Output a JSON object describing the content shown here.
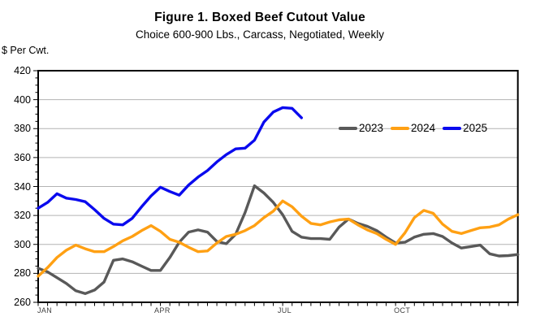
{
  "chart_data": {
    "type": "line",
    "title": "Figure 1. Boxed Beef Cutout Value",
    "subtitle": "Choice 600-900 Lbs., Carcass, Negotiated, Weekly",
    "y_axis_label": "$ Per Cwt.",
    "ylim": [
      260,
      420
    ],
    "y_ticks": [
      420,
      400,
      380,
      360,
      340,
      320,
      300,
      280,
      260
    ],
    "y_minor_tick_step": 5,
    "grid": "horizontal",
    "x_unit": "week",
    "x_weeks_per_year": 52,
    "x_tick_labels": [
      {
        "label": "JAN",
        "week": 0.7
      },
      {
        "label": "APR",
        "week": 13.2
      },
      {
        "label": "JUL",
        "week": 26.2
      },
      {
        "label": "OCT",
        "week": 38.7
      }
    ],
    "legend_position": "inside-top-right",
    "colors": {
      "grid": "#b3b3b3",
      "axis": "#000000",
      "background": "#ffffff"
    },
    "series": [
      {
        "name": "2023",
        "color": "#595959",
        "values": [
          283.5,
          281,
          277,
          273,
          268,
          266,
          268.5,
          274,
          289,
          290,
          288,
          285,
          282,
          282,
          291,
          301.5,
          308.5,
          310,
          308.5,
          302,
          300.5,
          307,
          322,
          340.5,
          335.5,
          329,
          320.5,
          309,
          305,
          304,
          304,
          303.5,
          312,
          317.5,
          314.5,
          312.5,
          309.5,
          305,
          301,
          301.5,
          305,
          307,
          307.5,
          305.5,
          301,
          297.5,
          298.5,
          299.5,
          293.5,
          292,
          292.3,
          293
        ]
      },
      {
        "name": "2024",
        "color": "#FFA013",
        "values": [
          278,
          284,
          291,
          296,
          299.5,
          297,
          295,
          295,
          298.5,
          302.5,
          305.5,
          309.5,
          313,
          309,
          303.5,
          301.5,
          298,
          295,
          295.5,
          301,
          305.5,
          307,
          309.5,
          313,
          318.5,
          323,
          330,
          326,
          319.5,
          314.5,
          313.5,
          315.5,
          317,
          317.5,
          313.5,
          310,
          307.5,
          303.5,
          300,
          308,
          318.5,
          323.5,
          321.5,
          314,
          309,
          307.5,
          309.5,
          311.5,
          312,
          313.5,
          317.5,
          320.5
        ]
      },
      {
        "name": "2025",
        "color": "#0A0AEE",
        "values": [
          325,
          329,
          335,
          332,
          331,
          329.5,
          324,
          318,
          314,
          313.5,
          318,
          326,
          333.5,
          339.5,
          336.5,
          334,
          341,
          346.5,
          351,
          357,
          362,
          366,
          366.5,
          372,
          384.5,
          391.5,
          394.5,
          394,
          387.5
        ]
      }
    ]
  }
}
